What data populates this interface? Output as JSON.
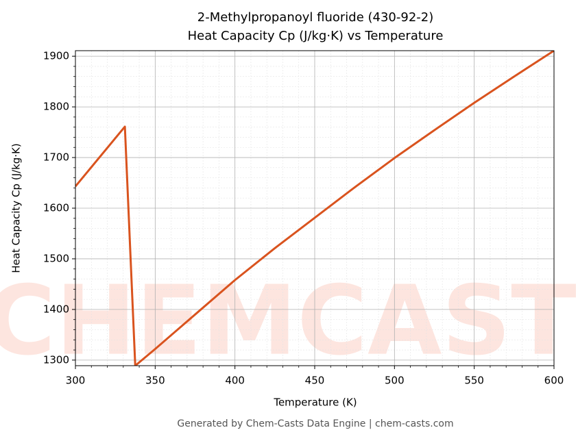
{
  "chart_data": {
    "type": "line",
    "title": "2-Methylpropanoyl fluoride (430-92-2)",
    "subtitle": "Heat Capacity Cp (J/kg·K) vs Temperature",
    "x_label": "Temperature (K)",
    "y_label": "Heat Capacity Cp (J/kg·K)",
    "footer": "Generated by Chem-Casts Data Engine | chem-casts.com",
    "watermark": "CHEMCASTS",
    "x": [
      300,
      331,
      337.5,
      350,
      375,
      400,
      425,
      450,
      475,
      500,
      525,
      550,
      575,
      600
    ],
    "series": [
      {
        "name": "Cp",
        "color": "#d9531e",
        "values": [
          1643,
          1761,
          1289,
          1322,
          1390,
          1458,
          1521,
          1581,
          1641,
          1699,
          1754,
          1808,
          1860,
          1911
        ]
      }
    ],
    "xlim": [
      300,
      600
    ],
    "ylim": [
      1289,
      1911
    ],
    "xticks": [
      300,
      350,
      400,
      450,
      500,
      550,
      600
    ],
    "yticks": [
      1300,
      1400,
      1500,
      1600,
      1700,
      1800,
      1900
    ],
    "xminorticks": [
      310,
      320,
      330,
      340,
      360,
      370,
      380,
      390,
      410,
      420,
      430,
      440,
      460,
      470,
      480,
      490,
      510,
      520,
      530,
      540,
      560,
      570,
      580,
      590
    ],
    "yminorticks": [
      1320,
      1340,
      1360,
      1380,
      1420,
      1440,
      1460,
      1480,
      1520,
      1540,
      1560,
      1580,
      1620,
      1640,
      1660,
      1680,
      1720,
      1740,
      1760,
      1780,
      1820,
      1840,
      1860,
      1880,
      1900
    ],
    "grid": true
  }
}
